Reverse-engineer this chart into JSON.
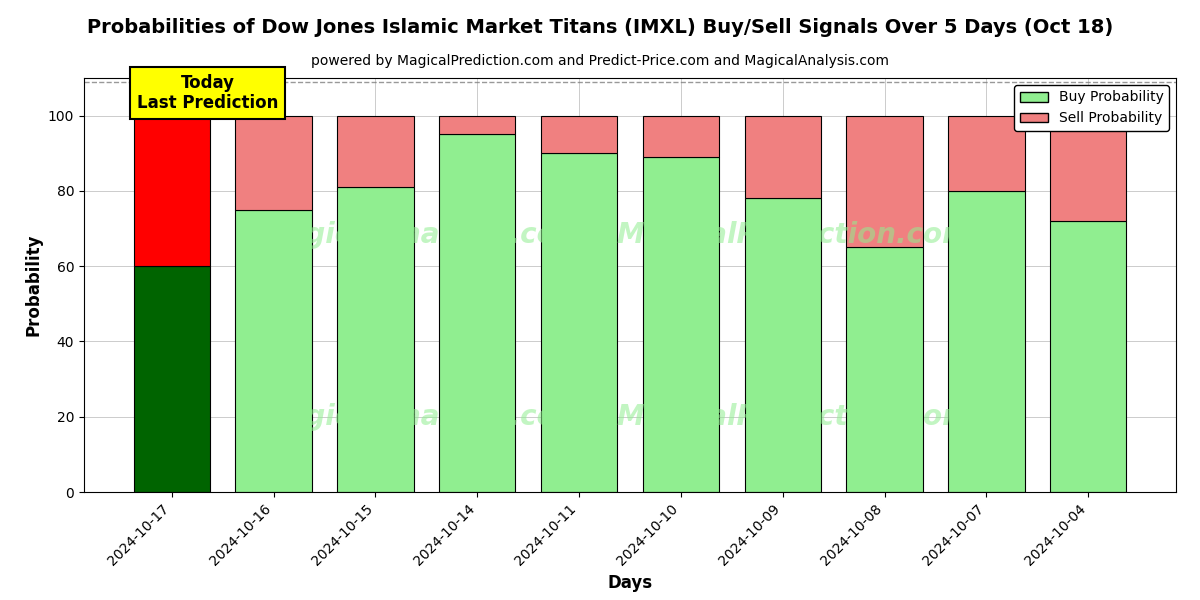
{
  "title": "Probabilities of Dow Jones Islamic Market Titans (IMXL) Buy/Sell Signals Over 5 Days (Oct 18)",
  "subtitle": "powered by MagicalPrediction.com and Predict-Price.com and MagicalAnalysis.com",
  "xlabel": "Days",
  "ylabel": "Probability",
  "categories": [
    "2024-10-17",
    "2024-10-16",
    "2024-10-15",
    "2024-10-14",
    "2024-10-11",
    "2024-10-10",
    "2024-10-09",
    "2024-10-08",
    "2024-10-07",
    "2024-10-04"
  ],
  "buy_values": [
    60,
    75,
    81,
    95,
    90,
    89,
    78,
    65,
    80,
    72
  ],
  "sell_values": [
    40,
    25,
    19,
    5,
    10,
    11,
    22,
    35,
    20,
    28
  ],
  "today_buy_color": "#006400",
  "today_sell_color": "#FF0000",
  "normal_buy_color": "#90EE90",
  "normal_sell_color": "#F08080",
  "annotation_text": "Today\nLast Prediction",
  "annotation_bg_color": "#FFFF00",
  "ylim": [
    0,
    110
  ],
  "yticks": [
    0,
    20,
    40,
    60,
    80,
    100
  ],
  "dashed_line_y": 109,
  "legend_buy_label": "Buy Probability",
  "legend_sell_label": "Sell Probability",
  "bar_width": 0.75,
  "title_fontsize": 14,
  "subtitle_fontsize": 10,
  "watermark_color": "#90EE90",
  "watermark_alpha": 0.55
}
